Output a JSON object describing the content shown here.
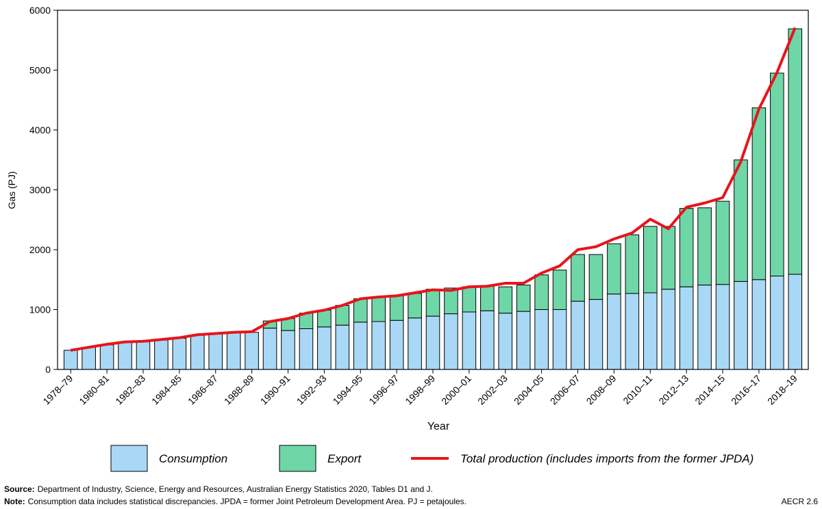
{
  "chart_data": {
    "type": "bar",
    "stacked": true,
    "y_label": "Gas (PJ)",
    "x_label": "Year",
    "categories": [
      "1978–79",
      null,
      "1980–81",
      null,
      "1982–83",
      null,
      "1984–85",
      null,
      "1986–87",
      null,
      "1988–89",
      null,
      "1990–91",
      null,
      "1992–93",
      null,
      "1994–95",
      null,
      "1996–97",
      null,
      "1998–99",
      null,
      "2000–01",
      null,
      "2002–03",
      null,
      "2004–05",
      null,
      "2006–07",
      null,
      "2008–09",
      null,
      "2010–11",
      null,
      "2012–13",
      null,
      "2014–15",
      null,
      "2016–17",
      null,
      "2018–19"
    ],
    "series": [
      {
        "name": "Consumption",
        "type": "bar",
        "color": "#a9d8f7",
        "values": [
          320,
          370,
          410,
          450,
          460,
          490,
          520,
          570,
          590,
          610,
          620,
          690,
          650,
          680,
          710,
          740,
          790,
          800,
          820,
          860,
          890,
          930,
          960,
          980,
          940,
          970,
          1000,
          1000,
          1140,
          1170,
          1260,
          1270,
          1280,
          1340,
          1380,
          1410,
          1420,
          1470,
          1500,
          1560,
          1590
        ]
      },
      {
        "name": "Export",
        "type": "bar",
        "color": "#6fd6a7",
        "values": [
          0,
          0,
          0,
          0,
          0,
          0,
          0,
          0,
          0,
          0,
          0,
          120,
          200,
          260,
          280,
          330,
          390,
          400,
          410,
          410,
          450,
          430,
          420,
          410,
          440,
          440,
          580,
          660,
          780,
          750,
          840,
          980,
          1110,
          1050,
          1310,
          1290,
          1390,
          2030,
          2870,
          3390,
          4100
        ]
      },
      {
        "name": "Total production (includes imports from the former JPDA)",
        "type": "line",
        "color": "#e8141a",
        "values": [
          320,
          370,
          420,
          460,
          470,
          500,
          530,
          580,
          600,
          620,
          630,
          800,
          850,
          940,
          990,
          1070,
          1180,
          1210,
          1230,
          1280,
          1330,
          1320,
          1380,
          1390,
          1440,
          1440,
          1610,
          1730,
          2000,
          2050,
          2180,
          2280,
          2510,
          2350,
          2710,
          2780,
          2870,
          3470,
          4350,
          4960,
          5710
        ]
      }
    ],
    "ylim": [
      0,
      6000
    ],
    "yticks": [
      0,
      1000,
      2000,
      3000,
      4000,
      5000,
      6000
    ],
    "source_label": "Source:",
    "source": "Department of Industry, Science, Energy and Resources, Australian Energy Statistics 2020, Tables D1 and J.",
    "note_label": "Note:",
    "note": "Consumption data includes statistical discrepancies. JPDA = former Joint Petroleum Development Area.  PJ = petajoules.",
    "figure_id": "AECR 2.6"
  }
}
